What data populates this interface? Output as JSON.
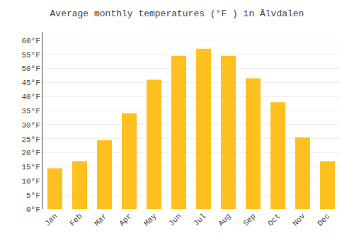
{
  "chart_data": {
    "type": "bar",
    "title": "Average monthly temperatures (°F ) in Älvdalen",
    "categories": [
      "Jan",
      "Feb",
      "Mar",
      "Apr",
      "May",
      "Jun",
      "Jul",
      "Aug",
      "Sep",
      "Oct",
      "Nov",
      "Dec"
    ],
    "values": [
      14.5,
      17.0,
      24.5,
      34.0,
      46.0,
      54.5,
      57.0,
      54.5,
      46.5,
      38.0,
      25.5,
      17.0
    ],
    "color": "#FFC020",
    "ylim": [
      0,
      63
    ],
    "yticks": [
      {
        "value": 0,
        "label": "0°F"
      },
      {
        "value": 5,
        "label": "5°F"
      },
      {
        "value": 10,
        "label": "10°F"
      },
      {
        "value": 15,
        "label": "15°F"
      },
      {
        "value": 20,
        "label": "20°F"
      },
      {
        "value": 25,
        "label": "25°F"
      },
      {
        "value": 30,
        "label": "30°F"
      },
      {
        "value": 35,
        "label": "35°F"
      },
      {
        "value": 40,
        "label": "40°F"
      },
      {
        "value": 45,
        "label": "45°F"
      },
      {
        "value": 50,
        "label": "50°F"
      },
      {
        "value": 55,
        "label": "55°F"
      },
      {
        "value": 60,
        "label": "60°F"
      }
    ],
    "grid": true
  }
}
